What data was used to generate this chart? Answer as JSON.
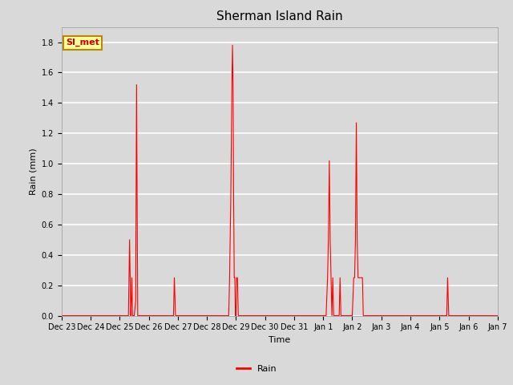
{
  "title": "Sherman Island Rain",
  "ylabel": "Rain (mm)",
  "xlabel": "Time",
  "legend_label": "Rain",
  "legend_color": "#ff0000",
  "line_color": "#ff0000",
  "line_width": 0.8,
  "bg_color": "#d9d9d9",
  "plot_bg_color": "#d9d9d9",
  "annotation_label": "SI_met",
  "annotation_bg": "#ffff99",
  "annotation_border": "#b8860b",
  "annotation_text_color": "#cc0000",
  "ylim": [
    0.0,
    1.9
  ],
  "yticks": [
    0.0,
    0.2,
    0.4,
    0.6,
    0.8,
    1.0,
    1.2,
    1.4,
    1.6,
    1.8
  ],
  "xtick_positions": [
    0,
    1,
    2,
    3,
    4,
    5,
    6,
    7,
    8,
    9,
    10,
    11,
    12,
    13,
    14,
    15
  ],
  "xtick_labels": [
    "Dec 23",
    "Dec 24",
    "Dec 25",
    "Dec 26",
    "Dec 27",
    "Dec 28",
    "Dec 29",
    "Dec 30",
    "Dec 31",
    "Jan 1",
    "Jan 2",
    "Jan 3",
    "Jan 4",
    "Jan 5",
    "Jan 6",
    "Jan 7"
  ],
  "data": [
    [
      0.0,
      0.0
    ],
    [
      2.0,
      0.0
    ],
    [
      2.3,
      0.0
    ],
    [
      2.32,
      0.25
    ],
    [
      2.34,
      0.5
    ],
    [
      2.36,
      0.25
    ],
    [
      2.38,
      0.0
    ],
    [
      2.4,
      0.1
    ],
    [
      2.42,
      0.25
    ],
    [
      2.44,
      0.0
    ],
    [
      2.5,
      0.0
    ],
    [
      2.55,
      0.1
    ],
    [
      2.58,
      1.52
    ],
    [
      2.62,
      0.0
    ],
    [
      3.0,
      0.0
    ],
    [
      3.85,
      0.0
    ],
    [
      3.88,
      0.25
    ],
    [
      3.92,
      0.0
    ],
    [
      4.5,
      0.0
    ],
    [
      5.75,
      0.0
    ],
    [
      5.78,
      0.25
    ],
    [
      5.82,
      0.75
    ],
    [
      5.86,
      1.52
    ],
    [
      5.88,
      1.78
    ],
    [
      5.9,
      1.52
    ],
    [
      5.92,
      0.75
    ],
    [
      5.94,
      0.25
    ],
    [
      5.96,
      0.25
    ],
    [
      5.98,
      0.0
    ],
    [
      6.0,
      0.0
    ],
    [
      6.02,
      0.25
    ],
    [
      6.05,
      0.25
    ],
    [
      6.08,
      0.0
    ],
    [
      7.0,
      0.0
    ],
    [
      8.5,
      0.0
    ],
    [
      9.1,
      0.0
    ],
    [
      9.15,
      0.25
    ],
    [
      9.18,
      0.5
    ],
    [
      9.21,
      1.02
    ],
    [
      9.24,
      0.5
    ],
    [
      9.27,
      0.25
    ],
    [
      9.3,
      0.0
    ],
    [
      9.33,
      0.25
    ],
    [
      9.36,
      0.0
    ],
    [
      9.55,
      0.0
    ],
    [
      9.58,
      0.25
    ],
    [
      9.61,
      0.0
    ],
    [
      10.0,
      0.0
    ],
    [
      10.05,
      0.25
    ],
    [
      10.08,
      0.25
    ],
    [
      10.11,
      0.5
    ],
    [
      10.14,
      1.27
    ],
    [
      10.17,
      0.5
    ],
    [
      10.2,
      0.25
    ],
    [
      10.23,
      0.25
    ],
    [
      10.26,
      0.25
    ],
    [
      10.29,
      0.25
    ],
    [
      10.32,
      0.25
    ],
    [
      10.35,
      0.25
    ],
    [
      10.38,
      0.0
    ],
    [
      11.0,
      0.0
    ],
    [
      12.0,
      0.0
    ],
    [
      13.0,
      0.0
    ],
    [
      13.25,
      0.0
    ],
    [
      13.28,
      0.25
    ],
    [
      13.32,
      0.0
    ],
    [
      14.0,
      0.0
    ],
    [
      15.0,
      0.0
    ]
  ]
}
